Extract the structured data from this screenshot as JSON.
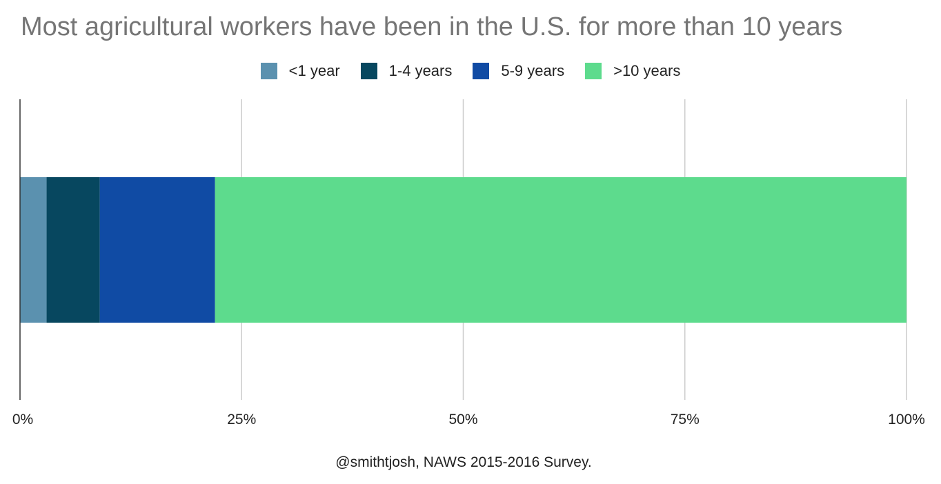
{
  "chart_data": {
    "type": "bar",
    "orientation": "horizontal",
    "stacked": "percent",
    "title": "Most agricultural workers have been in the U.S. for more than 10 years",
    "source": "@smithtjosh, NAWS 2015-2016 Survey.",
    "categories": [
      ""
    ],
    "series": [
      {
        "name": "<1 year",
        "values": [
          3
        ],
        "color": "#5b91af"
      },
      {
        "name": "1-4 years",
        "values": [
          6
        ],
        "color": "#07475f"
      },
      {
        "name": "5-9 years",
        "values": [
          13
        ],
        "color": "#104ba4"
      },
      {
        "name": ">10 years",
        "values": [
          78
        ],
        "color": "#5ddb8d"
      }
    ],
    "xlim": [
      0,
      100
    ],
    "xticks": [
      {
        "value": 0,
        "label": "0%"
      },
      {
        "value": 25,
        "label": "25%"
      },
      {
        "value": 50,
        "label": "50%"
      },
      {
        "value": 75,
        "label": "75%"
      },
      {
        "value": 100,
        "label": "100%"
      }
    ],
    "grid": true,
    "legend": "top-center"
  }
}
